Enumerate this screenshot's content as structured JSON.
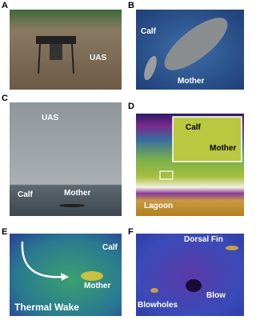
{
  "panels": [
    {
      "letter": "A",
      "labels": [
        "UAS"
      ]
    },
    {
      "letter": "B",
      "labels": [
        "Calf",
        "Mother"
      ]
    },
    {
      "letter": "C",
      "labels": [
        "UAS",
        "Calf",
        "Mother"
      ]
    },
    {
      "letter": "D",
      "labels": [
        "Calf",
        "Mother",
        "Lagoon"
      ]
    },
    {
      "letter": "E",
      "labels": [
        "Calf",
        "Mother",
        "Thermal Wake"
      ]
    },
    {
      "letter": "F",
      "labels": [
        "Dorsal Fin",
        "Blowholes",
        "Blow"
      ]
    }
  ]
}
